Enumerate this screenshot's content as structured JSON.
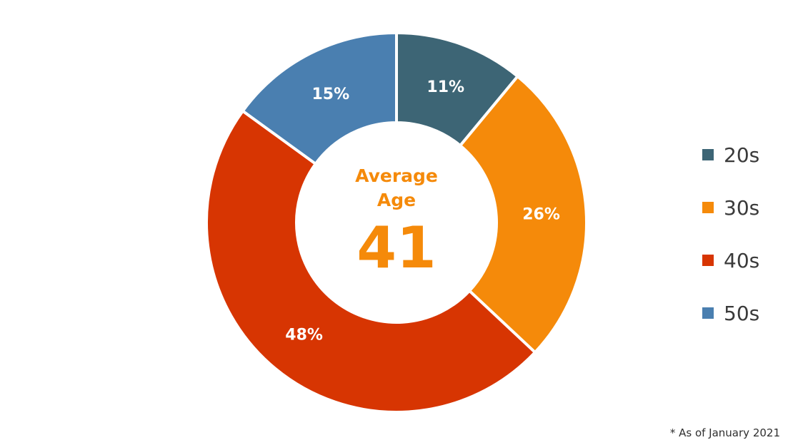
{
  "chart_data": {
    "type": "pie",
    "style": "donut",
    "categories": [
      "20s",
      "30s",
      "40s",
      "50s"
    ],
    "values": [
      11,
      26,
      48,
      15
    ],
    "value_labels": [
      "11%",
      "26%",
      "48%",
      "15%"
    ],
    "colors": [
      "#3d6575",
      "#f58a0a",
      "#d73502",
      "#4a7fb0"
    ],
    "legend": [
      "20s",
      "30s",
      "40s",
      "50s"
    ],
    "legend_position": "right",
    "center_text": {
      "label_line1": "Average",
      "label_line2": "Age",
      "value": "41"
    }
  },
  "footnote": "* As of January 2021"
}
